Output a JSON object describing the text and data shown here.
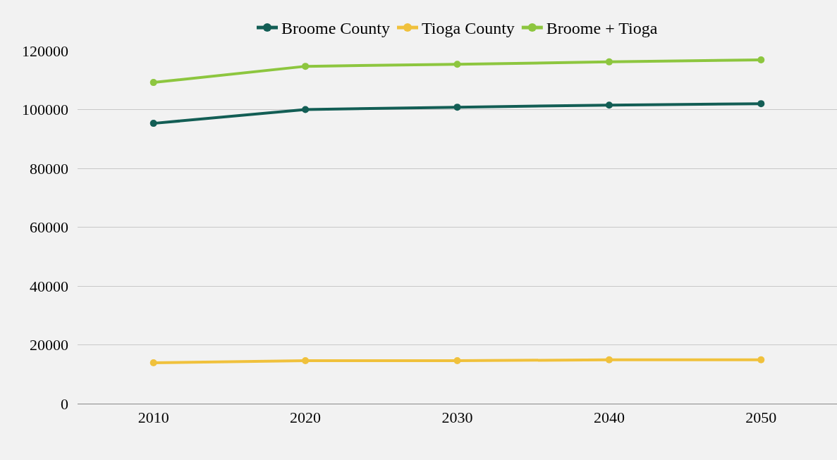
{
  "chart_data": {
    "type": "line",
    "x": [
      2010,
      2020,
      2030,
      2040,
      2050
    ],
    "series": [
      {
        "name": "Broome County",
        "color": "#135e55",
        "values": [
          95300,
          100000,
          100800,
          101500,
          102000
        ]
      },
      {
        "name": "Tioga County",
        "color": "#f0c13c",
        "values": [
          13900,
          14600,
          14600,
          14900,
          14900
        ]
      },
      {
        "name": "Broome + Tioga",
        "color": "#8dc63f",
        "values": [
          109200,
          114700,
          115400,
          116200,
          116900
        ]
      }
    ],
    "xlim": [
      2005,
      2055
    ],
    "xticks": [
      2010,
      2020,
      2030,
      2040,
      2050
    ],
    "ylim": [
      0,
      120000
    ],
    "yticks": [
      0,
      20000,
      40000,
      60000,
      80000,
      100000,
      120000
    ],
    "grid": "y",
    "legend": "top",
    "marker": "circle",
    "line_style": "solid"
  }
}
